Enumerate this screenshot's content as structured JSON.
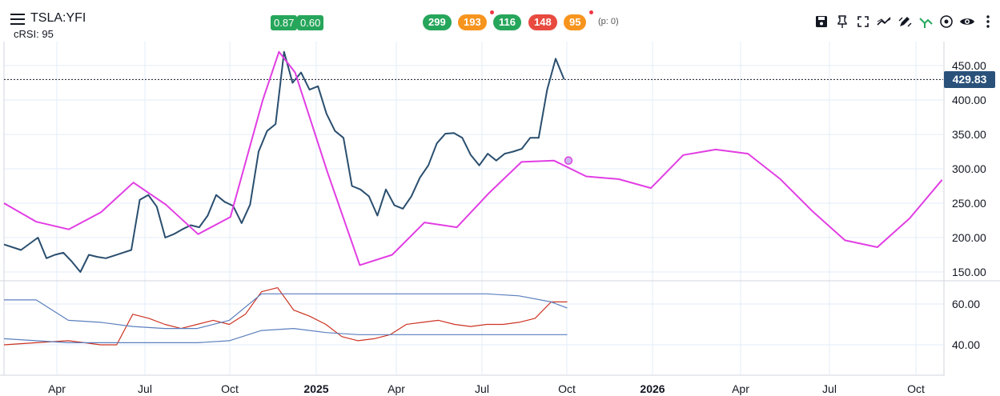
{
  "header": {
    "symbol": "TSLA:YFI",
    "indicator_label": "cRSI: 95",
    "badges_left": [
      "0.87",
      "0.60"
    ],
    "badges_right": [
      {
        "text": "299",
        "color": "#26a65b"
      },
      {
        "text": "193",
        "color": "#f7941d"
      },
      {
        "text": "116",
        "color": "#26a65b"
      },
      {
        "text": "148",
        "color": "#e84a3f"
      },
      {
        "text": "95",
        "color": "#f7941d"
      }
    ],
    "p_info": "(p: 0)",
    "tools": [
      "save-icon",
      "pin-icon",
      "fullscreen-icon",
      "trend-icon",
      "draw-icon",
      "signal-icon",
      "target-icon",
      "eye-icon",
      "more-icon"
    ]
  },
  "last_price": "429.83",
  "chart_data": {
    "type": "line",
    "x_axis_labels": [
      "Apr",
      "Jul",
      "Oct",
      "2025",
      "Apr",
      "Jul",
      "Oct",
      "2026",
      "Apr",
      "Jul",
      "Oct"
    ],
    "price_axis_labels": [
      "450.00",
      "400.00",
      "350.00",
      "300.00",
      "250.00",
      "200.00",
      "150.00"
    ],
    "rsi_axis_labels": [
      "60.00",
      "40.00"
    ],
    "price_ylim": [
      140,
      480
    ],
    "rsi_ylim": [
      35,
      75
    ],
    "last_price": 429.83,
    "series": [
      {
        "color": "#2a4e6e",
        "points": [
          [
            0,
            190
          ],
          [
            2,
            182
          ],
          [
            4,
            200
          ],
          [
            5,
            170
          ],
          [
            6,
            175
          ],
          [
            7,
            178
          ],
          [
            8,
            165
          ],
          [
            9,
            150
          ],
          [
            10,
            175
          ],
          [
            11,
            172
          ],
          [
            12,
            170
          ],
          [
            13,
            174
          ],
          [
            14,
            178
          ],
          [
            15,
            182
          ],
          [
            16,
            255
          ],
          [
            17,
            262
          ],
          [
            18,
            245
          ],
          [
            19,
            200
          ],
          [
            20,
            205
          ],
          [
            21,
            212
          ],
          [
            22,
            218
          ],
          [
            23,
            215
          ],
          [
            24,
            232
          ],
          [
            25,
            262
          ],
          [
            26,
            252
          ],
          [
            27,
            246
          ],
          [
            28,
            221
          ],
          [
            29,
            248
          ],
          [
            30,
            325
          ],
          [
            31,
            355
          ],
          [
            32,
            365
          ],
          [
            33,
            470
          ],
          [
            34,
            425
          ],
          [
            35,
            440
          ],
          [
            36,
            415
          ],
          [
            37,
            420
          ],
          [
            38,
            380
          ],
          [
            39,
            355
          ],
          [
            40,
            345
          ],
          [
            41,
            275
          ],
          [
            42,
            270
          ],
          [
            43,
            260
          ],
          [
            44,
            232
          ],
          [
            45,
            270
          ],
          [
            46,
            247
          ],
          [
            47,
            242
          ],
          [
            48,
            260
          ],
          [
            49,
            287
          ],
          [
            50,
            305
          ],
          [
            51,
            337
          ],
          [
            52,
            351
          ],
          [
            53,
            352
          ],
          [
            54,
            345
          ],
          [
            55,
            320
          ],
          [
            56,
            305
          ],
          [
            57,
            322
          ],
          [
            58,
            312
          ],
          [
            59,
            322
          ],
          [
            60,
            325
          ],
          [
            61,
            329
          ],
          [
            62,
            345
          ],
          [
            63,
            345
          ],
          [
            64,
            415
          ],
          [
            65,
            460
          ],
          [
            66,
            429.83
          ]
        ]
      },
      {
        "color": "#e13ee3",
        "points": [
          [
            0,
            250
          ],
          [
            2,
            223
          ],
          [
            4,
            212
          ],
          [
            6,
            237
          ],
          [
            8,
            280
          ],
          [
            10,
            248
          ],
          [
            12,
            205
          ],
          [
            14,
            230
          ],
          [
            16,
            400
          ],
          [
            17,
            470
          ],
          [
            18,
            440
          ],
          [
            20,
            295
          ],
          [
            22,
            160
          ],
          [
            24,
            175
          ],
          [
            26,
            222
          ],
          [
            28,
            215
          ],
          [
            30,
            265
          ],
          [
            32,
            310
          ],
          [
            34,
            312
          ],
          [
            36,
            289
          ],
          [
            38,
            285
          ],
          [
            40,
            272
          ],
          [
            42,
            320
          ],
          [
            44,
            328
          ],
          [
            46,
            322
          ],
          [
            48,
            285
          ],
          [
            50,
            238
          ],
          [
            52,
            196
          ],
          [
            54,
            186
          ],
          [
            56,
            228
          ],
          [
            58,
            284
          ]
        ]
      },
      {
        "color": "#cc3322",
        "points": [
          [
            0,
            40
          ],
          [
            2,
            41
          ],
          [
            4,
            42
          ],
          [
            5,
            41
          ],
          [
            6,
            40
          ],
          [
            7,
            40
          ],
          [
            8,
            55
          ],
          [
            9,
            53
          ],
          [
            10,
            50
          ],
          [
            11,
            48
          ],
          [
            12,
            50
          ],
          [
            13,
            52
          ],
          [
            14,
            50
          ],
          [
            15,
            55
          ],
          [
            16,
            66
          ],
          [
            17,
            68
          ],
          [
            18,
            57
          ],
          [
            19,
            54
          ],
          [
            20,
            50
          ],
          [
            21,
            44
          ],
          [
            22,
            42
          ],
          [
            23,
            43
          ],
          [
            24,
            45
          ],
          [
            25,
            50
          ],
          [
            26,
            51
          ],
          [
            27,
            52
          ],
          [
            28,
            50
          ],
          [
            29,
            49
          ],
          [
            30,
            50
          ],
          [
            31,
            50
          ],
          [
            32,
            51
          ],
          [
            33,
            53
          ],
          [
            34,
            61
          ],
          [
            35,
            61
          ]
        ]
      },
      {
        "color": "#5b7fbe",
        "points": [
          [
            0,
            62
          ],
          [
            2,
            62
          ],
          [
            4,
            52
          ],
          [
            6,
            51
          ],
          [
            8,
            49
          ],
          [
            10,
            48
          ],
          [
            12,
            48
          ],
          [
            14,
            52
          ],
          [
            16,
            65
          ],
          [
            18,
            65
          ],
          [
            20,
            65
          ],
          [
            22,
            65
          ],
          [
            24,
            65
          ],
          [
            26,
            65
          ],
          [
            28,
            65
          ],
          [
            30,
            65
          ],
          [
            32,
            64
          ],
          [
            34,
            61
          ],
          [
            35,
            58
          ]
        ]
      },
      {
        "color": "#5b7fbe",
        "points": [
          [
            0,
            43
          ],
          [
            2,
            42
          ],
          [
            4,
            41
          ],
          [
            6,
            41
          ],
          [
            8,
            41
          ],
          [
            10,
            41
          ],
          [
            12,
            41
          ],
          [
            14,
            42
          ],
          [
            16,
            47
          ],
          [
            18,
            48
          ],
          [
            20,
            46
          ],
          [
            22,
            45
          ],
          [
            24,
            45
          ],
          [
            26,
            45
          ],
          [
            28,
            45
          ],
          [
            30,
            45
          ],
          [
            32,
            45
          ],
          [
            34,
            45
          ],
          [
            35,
            45
          ]
        ]
      }
    ]
  }
}
